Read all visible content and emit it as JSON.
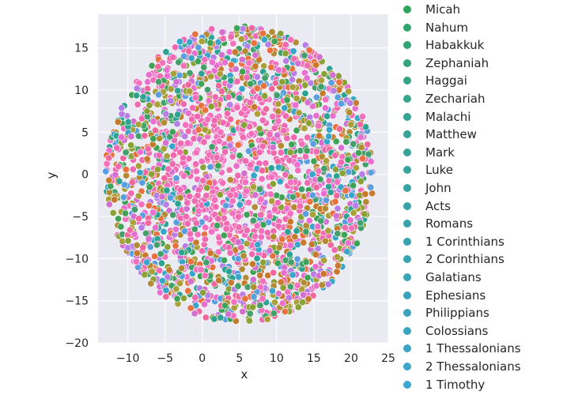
{
  "chart_data": {
    "type": "scatter",
    "title": "",
    "xlabel": "x",
    "ylabel": "y",
    "xlim": [
      -14,
      25
    ],
    "ylim": [
      -20,
      19
    ],
    "x_ticks": [
      -10,
      -5,
      0,
      5,
      10,
      15,
      20,
      25
    ],
    "y_ticks": [
      -20,
      -15,
      -10,
      -5,
      0,
      5,
      10,
      15
    ],
    "grid": true,
    "background": "#eaeaf2",
    "legend_placement": "outside-right",
    "description": "Dense circular cloud of points centered near (5, 0) with radius ~18, colored by book; legend truncated.",
    "center": [
      5,
      0
    ],
    "radius": 18,
    "series": [
      {
        "name": "Micah",
        "color": "#2ea65a"
      },
      {
        "name": "Nahum",
        "color": "#31a56d"
      },
      {
        "name": "Habakkuk",
        "color": "#32a478"
      },
      {
        "name": "Zephaniah",
        "color": "#33a47f"
      },
      {
        "name": "Haggai",
        "color": "#34a486"
      },
      {
        "name": "Zechariah",
        "color": "#34a48c"
      },
      {
        "name": "Malachi",
        "color": "#35a392"
      },
      {
        "name": "Matthew",
        "color": "#35a396"
      },
      {
        "name": "Mark",
        "color": "#36a39b"
      },
      {
        "name": "Luke",
        "color": "#36a39f"
      },
      {
        "name": "John",
        "color": "#37a3a3"
      },
      {
        "name": "Acts",
        "color": "#37a3a7"
      },
      {
        "name": "Romans",
        "color": "#38a3ab"
      },
      {
        "name": "1 Corinthians",
        "color": "#38a3af"
      },
      {
        "name": "2 Corinthians",
        "color": "#39a3b3"
      },
      {
        "name": "Galatians",
        "color": "#39a3b7"
      },
      {
        "name": "Ephesians",
        "color": "#3aa3bb"
      },
      {
        "name": "Philippians",
        "color": "#3aa4bf"
      },
      {
        "name": "Colossians",
        "color": "#3ba4c3"
      },
      {
        "name": "1 Thessalonians",
        "color": "#3ba5c8"
      },
      {
        "name": "2 Thessalonians",
        "color": "#3ca6cd"
      },
      {
        "name": "1 Timothy",
        "color": "#3da7d3"
      }
    ],
    "cloud_palette": [
      "#f06ab2",
      "#f46fbd",
      "#e86fd0",
      "#a9a03a",
      "#b28b34",
      "#c77a2e",
      "#8aa136",
      "#43a06a",
      "#2ea391",
      "#39a6c9",
      "#5a9ee0",
      "#b77ee6",
      "#d370cf",
      "#f0679e",
      "#e7723f",
      "#3fa357"
    ]
  }
}
